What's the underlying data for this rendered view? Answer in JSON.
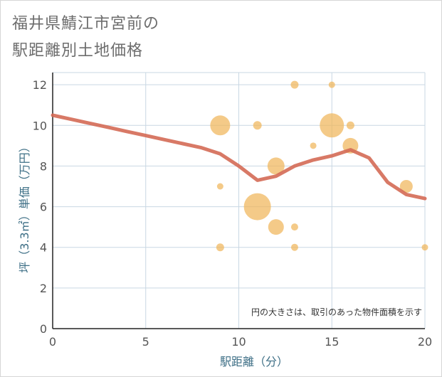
{
  "title_line1": "福井県鯖江市宮前の",
  "title_line2": "駅距離別土地価格",
  "colors": {
    "bubble": "#f0b65a",
    "line": "#d46a55",
    "grid": "#c9d7e3",
    "axis_label": "#3e6f86"
  },
  "chart_data": {
    "type": "scatter",
    "xlabel": "駅距離（分）",
    "ylabel": "坪（3.3㎡）単価（万円）",
    "xlim": [
      0,
      20
    ],
    "ylim": [
      0,
      12.6
    ],
    "xticks": [
      0,
      5,
      10,
      15,
      20
    ],
    "yticks": [
      0,
      2,
      4,
      6,
      8,
      10,
      12
    ],
    "note": "円の大きさは、取引のあった物件面積を示す",
    "points": [
      {
        "x": 9,
        "y": 10,
        "size": 14
      },
      {
        "x": 9,
        "y": 7,
        "size": 4.5
      },
      {
        "x": 9,
        "y": 4,
        "size": 5.5
      },
      {
        "x": 11,
        "y": 10,
        "size": 6
      },
      {
        "x": 11,
        "y": 6,
        "size": 19
      },
      {
        "x": 12,
        "y": 8,
        "size": 12
      },
      {
        "x": 12,
        "y": 5,
        "size": 11
      },
      {
        "x": 13,
        "y": 12,
        "size": 5.5
      },
      {
        "x": 13,
        "y": 5,
        "size": 5
      },
      {
        "x": 13,
        "y": 4,
        "size": 5
      },
      {
        "x": 14,
        "y": 9,
        "size": 4.5
      },
      {
        "x": 15,
        "y": 12,
        "size": 4.5
      },
      {
        "x": 15,
        "y": 10,
        "size": 17
      },
      {
        "x": 16,
        "y": 10,
        "size": 5.5
      },
      {
        "x": 16,
        "y": 9,
        "size": 11
      },
      {
        "x": 19,
        "y": 7,
        "size": 9
      },
      {
        "x": 20,
        "y": 4,
        "size": 4.5
      }
    ],
    "trend": {
      "x": [
        0,
        1,
        2,
        3,
        4,
        5,
        6,
        7,
        8,
        9,
        10,
        11,
        12,
        13,
        14,
        15,
        16,
        17,
        18,
        19,
        20
      ],
      "y": [
        10.5,
        10.3,
        10.1,
        9.9,
        9.7,
        9.5,
        9.3,
        9.1,
        8.9,
        8.6,
        8.0,
        7.3,
        7.5,
        8.0,
        8.3,
        8.5,
        8.8,
        8.4,
        7.2,
        6.6,
        6.4
      ]
    }
  }
}
